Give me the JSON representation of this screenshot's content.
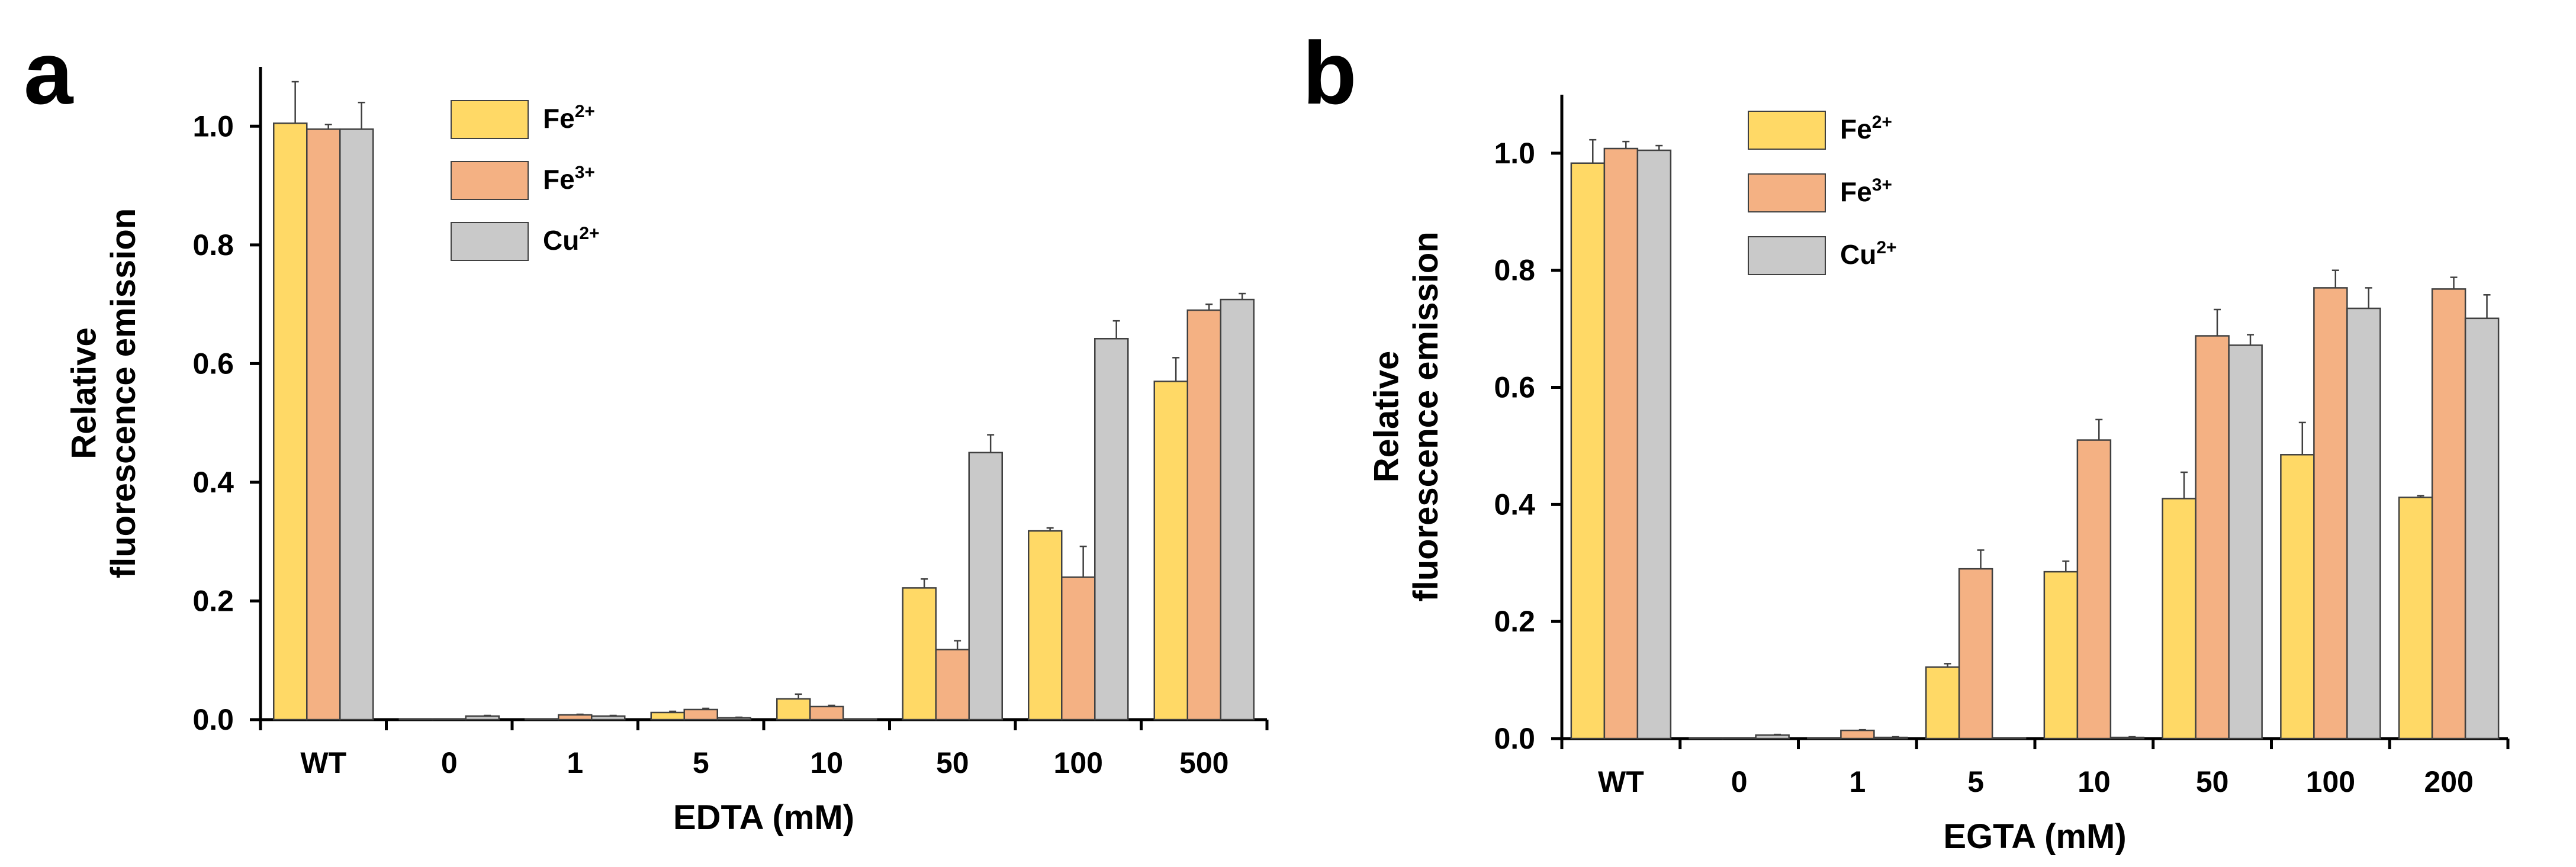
{
  "panels": [
    {
      "letter": "a",
      "legend_labels": [
        "Fe2+",
        "Fe3+",
        "Cu2+"
      ]
    },
    {
      "letter": "b",
      "legend_labels": [
        "Fe2+",
        "Fe3+",
        "Cu2+"
      ]
    }
  ],
  "chart_data": [
    {
      "type": "bar",
      "xlabel": "EDTA (mM)",
      "ylabel": "Relative fluorescence emission",
      "ylim": [
        0,
        1.1
      ],
      "yticks": [
        "0.0",
        "0.2",
        "0.4",
        "0.6",
        "0.8",
        "1.0"
      ],
      "categories": [
        "WT",
        "0",
        "1",
        "5",
        "10",
        "50",
        "100",
        "500"
      ],
      "legend_position": "top-center",
      "series": [
        {
          "name": "Fe2+",
          "color": "#FFD966",
          "values": [
            1.005,
            0.0,
            0.0,
            0.012,
            0.035,
            0.222,
            0.318,
            0.57
          ],
          "errors": [
            0.07,
            0.0,
            0.0,
            0.002,
            0.008,
            0.015,
            0.005,
            0.04
          ]
        },
        {
          "name": "Fe3+",
          "color": "#F4B183",
          "values": [
            0.995,
            0.0,
            0.008,
            0.017,
            0.022,
            0.118,
            0.24,
            0.69
          ],
          "errors": [
            0.008,
            0.0,
            0.001,
            0.002,
            0.002,
            0.015,
            0.052,
            0.01
          ]
        },
        {
          "name": "Cu2+",
          "color": "#C9C9C9",
          "values": [
            0.995,
            0.006,
            0.006,
            0.003,
            0.0,
            0.45,
            0.642,
            0.708
          ],
          "errors": [
            0.045,
            0.001,
            0.001,
            0.001,
            0.0,
            0.03,
            0.03,
            0.01
          ]
        }
      ]
    },
    {
      "type": "bar",
      "xlabel": "EGTA (mM)",
      "ylabel": "Relative fluorescence emission",
      "ylim": [
        0,
        1.1
      ],
      "yticks": [
        "0.0",
        "0.2",
        "0.4",
        "0.6",
        "0.8",
        "1.0"
      ],
      "categories": [
        "WT",
        "0",
        "1",
        "5",
        "10",
        "50",
        "100",
        "200"
      ],
      "legend_position": "top-center",
      "series": [
        {
          "name": "Fe2+",
          "color": "#FFD966",
          "values": [
            0.983,
            0.0,
            0.0,
            0.122,
            0.285,
            0.41,
            0.485,
            0.412
          ],
          "errors": [
            0.04,
            0.0,
            0.0,
            0.006,
            0.018,
            0.045,
            0.055,
            0.003
          ]
        },
        {
          "name": "Fe3+",
          "color": "#F4B183",
          "values": [
            1.008,
            0.0,
            0.014,
            0.29,
            0.51,
            0.688,
            0.77,
            0.768
          ],
          "errors": [
            0.012,
            0.0,
            0.001,
            0.032,
            0.035,
            0.045,
            0.03,
            0.02
          ]
        },
        {
          "name": "Cu2+",
          "color": "#C9C9C9",
          "values": [
            1.005,
            0.006,
            0.002,
            0.0,
            0.002,
            0.672,
            0.735,
            0.718
          ],
          "errors": [
            0.008,
            0.001,
            0.001,
            0.0,
            0.001,
            0.018,
            0.035,
            0.04
          ]
        }
      ]
    }
  ]
}
